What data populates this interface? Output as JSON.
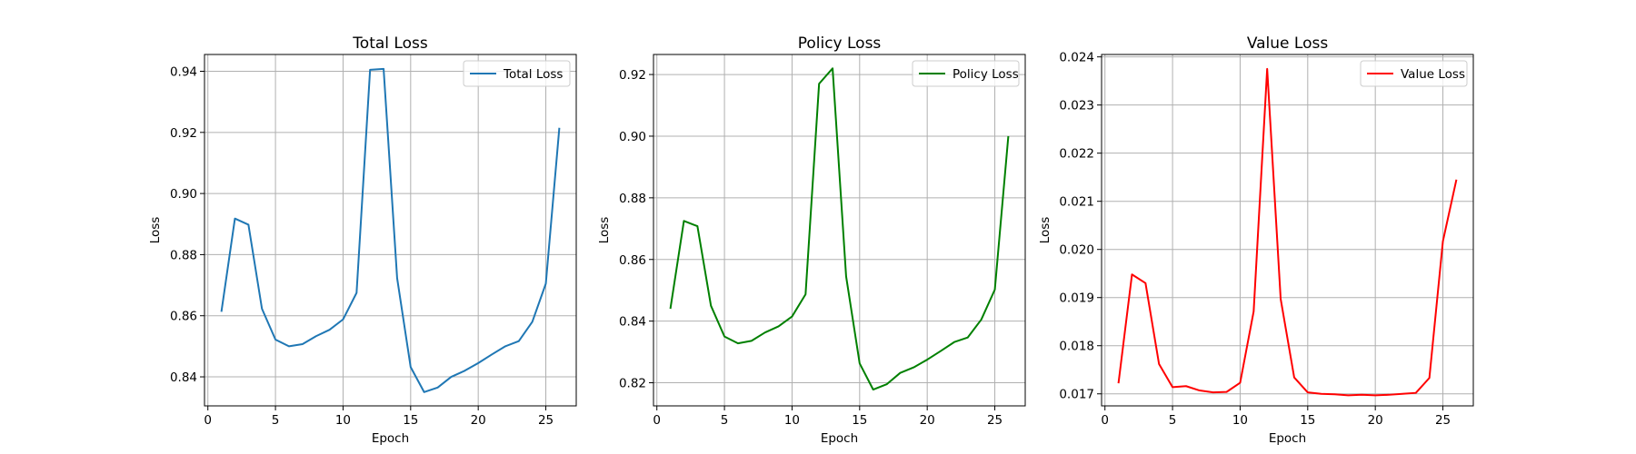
{
  "chart_data": [
    {
      "type": "line",
      "title": "Total Loss",
      "xlabel": "Epoch",
      "ylabel": "Loss",
      "grid": true,
      "legend_position": "top-right",
      "xlim": [
        -0.25,
        27.25
      ],
      "ylim": [
        0.8305,
        0.9455
      ],
      "xticks": [
        0,
        5,
        10,
        15,
        20,
        25
      ],
      "xtick_labels": [
        "0",
        "5",
        "10",
        "15",
        "20",
        "25"
      ],
      "yticks": [
        0.84,
        0.86,
        0.88,
        0.9,
        0.92,
        0.94
      ],
      "ytick_labels": [
        "0.84",
        "0.86",
        "0.88",
        "0.90",
        "0.92",
        "0.94"
      ],
      "series": [
        {
          "name": "Total Loss",
          "color": "#1f77b4",
          "x": [
            1,
            2,
            3,
            4,
            5,
            6,
            7,
            8,
            9,
            10,
            11,
            12,
            13,
            14,
            15,
            16,
            17,
            18,
            19,
            20,
            21,
            22,
            23,
            24,
            25,
            26
          ],
          "y": [
            0.8613,
            0.8918,
            0.8898,
            0.8623,
            0.8522,
            0.85,
            0.8507,
            0.8533,
            0.8554,
            0.8588,
            0.8675,
            0.9405,
            0.9408,
            0.8723,
            0.8432,
            0.835,
            0.8365,
            0.84,
            0.842,
            0.8445,
            0.8473,
            0.85,
            0.8517,
            0.858,
            0.8705,
            0.9215
          ]
        }
      ]
    },
    {
      "type": "line",
      "title": "Policy Loss",
      "xlabel": "Epoch",
      "ylabel": "Loss",
      "grid": true,
      "legend_position": "top-right",
      "xlim": [
        -0.25,
        27.25
      ],
      "ylim": [
        0.8125,
        0.9265
      ],
      "xticks": [
        0,
        5,
        10,
        15,
        20,
        25
      ],
      "xtick_labels": [
        "0",
        "5",
        "10",
        "15",
        "20",
        "25"
      ],
      "yticks": [
        0.82,
        0.84,
        0.86,
        0.88,
        0.9,
        0.92
      ],
      "ytick_labels": [
        "0.82",
        "0.84",
        "0.86",
        "0.88",
        "0.90",
        "0.92"
      ],
      "series": [
        {
          "name": "Policy Loss",
          "color": "#008000",
          "x": [
            1,
            2,
            3,
            4,
            5,
            6,
            7,
            8,
            9,
            10,
            11,
            12,
            13,
            14,
            15,
            16,
            17,
            18,
            19,
            20,
            21,
            22,
            23,
            24,
            25,
            26
          ],
          "y": [
            0.844,
            0.8725,
            0.8708,
            0.845,
            0.835,
            0.8328,
            0.8336,
            0.8363,
            0.8383,
            0.8415,
            0.8487,
            0.917,
            0.922,
            0.8545,
            0.8263,
            0.8178,
            0.8195,
            0.8232,
            0.825,
            0.8275,
            0.8303,
            0.8332,
            0.8347,
            0.8405,
            0.8502,
            0.9
          ]
        }
      ]
    },
    {
      "type": "line",
      "title": "Value Loss",
      "xlabel": "Epoch",
      "ylabel": "Loss",
      "grid": true,
      "legend_position": "top-right",
      "xlim": [
        -0.25,
        27.25
      ],
      "ylim": [
        0.01675,
        0.02405
      ],
      "xticks": [
        0,
        5,
        10,
        15,
        20,
        25
      ],
      "xtick_labels": [
        "0",
        "5",
        "10",
        "15",
        "20",
        "25"
      ],
      "yticks": [
        0.017,
        0.018,
        0.019,
        0.02,
        0.021,
        0.022,
        0.023,
        0.024
      ],
      "ytick_labels": [
        "0.017",
        "0.018",
        "0.019",
        "0.020",
        "0.021",
        "0.022",
        "0.023",
        "0.024"
      ],
      "series": [
        {
          "name": "Value Loss",
          "color": "#ff0000",
          "x": [
            1,
            2,
            3,
            4,
            5,
            6,
            7,
            8,
            9,
            10,
            11,
            12,
            13,
            14,
            15,
            16,
            17,
            18,
            19,
            20,
            21,
            22,
            23,
            24,
            25,
            26
          ],
          "y": [
            0.01722,
            0.01948,
            0.0193,
            0.01762,
            0.01714,
            0.01716,
            0.01707,
            0.01703,
            0.01704,
            0.01723,
            0.01871,
            0.02375,
            0.01897,
            0.01734,
            0.01703,
            0.017,
            0.01699,
            0.01697,
            0.01698,
            0.01697,
            0.01698,
            0.017,
            0.01702,
            0.01733,
            0.02017,
            0.02145
          ]
        }
      ]
    }
  ]
}
